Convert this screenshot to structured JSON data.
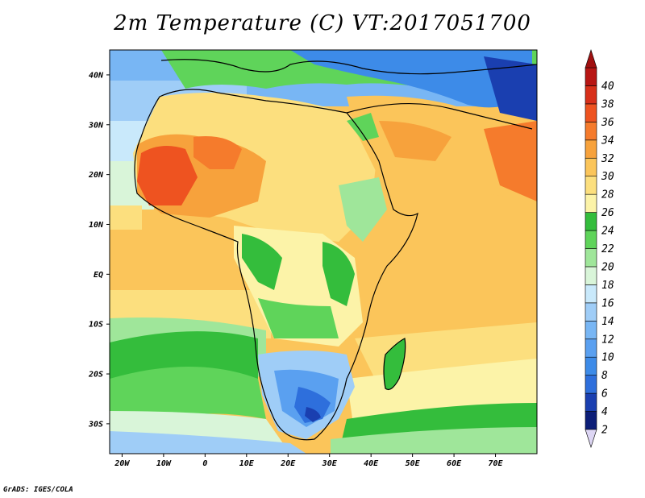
{
  "title": "2m Temperature (C) VT:2017051700",
  "credit": "GrADS: IGES/COLA",
  "map": {
    "variable": "2m Temperature",
    "units": "C",
    "valid_time": "2017051700",
    "lon_range": [
      -23,
      80
    ],
    "lat_range": [
      -36,
      45
    ],
    "lon_ticks": [
      {
        "value": -20,
        "label": "20W"
      },
      {
        "value": -10,
        "label": "10W"
      },
      {
        "value": 0,
        "label": "0"
      },
      {
        "value": 10,
        "label": "10E"
      },
      {
        "value": 20,
        "label": "20E"
      },
      {
        "value": 30,
        "label": "30E"
      },
      {
        "value": 40,
        "label": "40E"
      },
      {
        "value": 50,
        "label": "50E"
      },
      {
        "value": 60,
        "label": "60E"
      },
      {
        "value": 70,
        "label": "70E"
      }
    ],
    "lat_ticks": [
      {
        "value": 40,
        "label": "40N"
      },
      {
        "value": 30,
        "label": "30N"
      },
      {
        "value": 20,
        "label": "20N"
      },
      {
        "value": 10,
        "label": "10N"
      },
      {
        "value": 0,
        "label": "EQ"
      },
      {
        "value": -10,
        "label": "10S"
      },
      {
        "value": -20,
        "label": "20S"
      },
      {
        "value": -30,
        "label": "30S"
      }
    ]
  },
  "colorbar": {
    "levels": [
      2,
      4,
      6,
      8,
      10,
      12,
      14,
      16,
      18,
      20,
      22,
      24,
      26,
      28,
      30,
      32,
      34,
      36,
      38,
      40
    ],
    "colors": [
      "#0c1e78",
      "#1a3fb0",
      "#2e6fdc",
      "#3d8be8",
      "#5aa0f0",
      "#78b6f4",
      "#9fcdf7",
      "#c9e9fb",
      "#d9f5d9",
      "#9fe69a",
      "#5fd45a",
      "#34bd3c",
      "#fcf3a8",
      "#fcdf7e",
      "#fbc55a",
      "#f7a23c",
      "#f57b2c",
      "#ee5320",
      "#d8301a",
      "#b81614"
    ],
    "low_extend_color": "#ddd6f4",
    "high_extend_color": "#a01010"
  }
}
